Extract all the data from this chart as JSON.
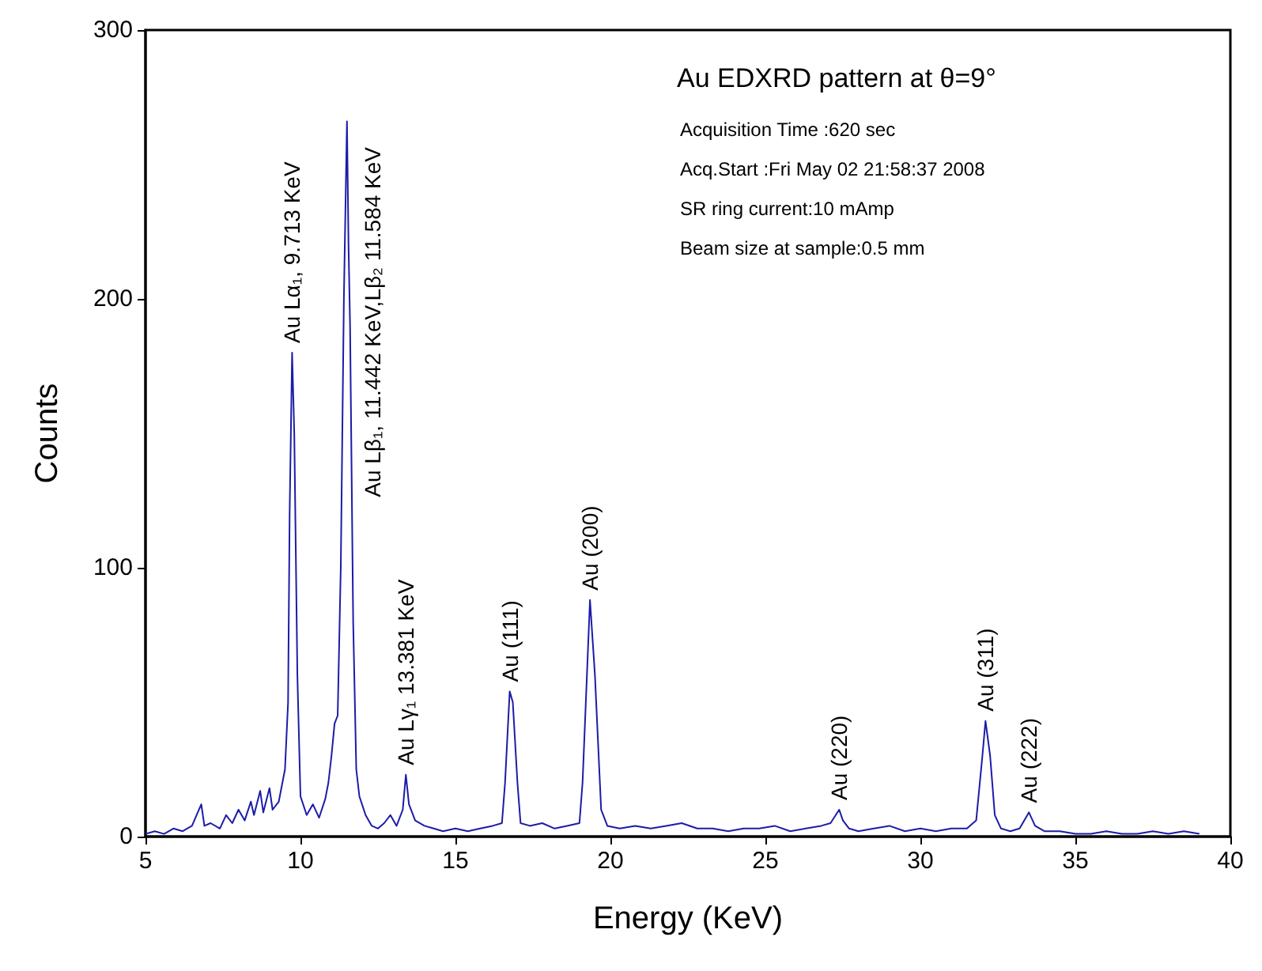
{
  "chart_data": {
    "type": "line",
    "title": "Au EDXRD pattern at θ=9°",
    "xlabel": "Energy (KeV)",
    "ylabel": "Counts",
    "xlim": [
      5,
      40
    ],
    "xticks": [
      5,
      10,
      15,
      20,
      25,
      30,
      35,
      40
    ],
    "ylim": [
      0,
      300
    ],
    "yticks": [
      0,
      100,
      200,
      300
    ],
    "grid": false,
    "series": [
      {
        "color": "#1c1ca8",
        "x": [
          5.0,
          5.3,
          5.6,
          5.9,
          6.2,
          6.5,
          6.8,
          6.9,
          7.1,
          7.4,
          7.6,
          7.8,
          8.0,
          8.2,
          8.4,
          8.5,
          8.7,
          8.8,
          9.0,
          9.1,
          9.3,
          9.5,
          9.6,
          9.65,
          9.73,
          9.8,
          9.9,
          10.0,
          10.2,
          10.4,
          10.6,
          10.8,
          10.9,
          11.0,
          11.1,
          11.2,
          11.3,
          11.4,
          11.5,
          11.55,
          11.6,
          11.7,
          11.8,
          11.9,
          12.1,
          12.3,
          12.5,
          12.7,
          12.9,
          13.1,
          13.3,
          13.4,
          13.5,
          13.7,
          14.0,
          14.3,
          14.6,
          15.0,
          15.4,
          15.8,
          16.2,
          16.5,
          16.6,
          16.75,
          16.85,
          17.0,
          17.1,
          17.4,
          17.8,
          18.2,
          18.6,
          19.0,
          19.1,
          19.34,
          19.5,
          19.7,
          19.9,
          20.3,
          20.8,
          21.3,
          21.8,
          22.3,
          22.8,
          23.3,
          23.8,
          24.3,
          24.8,
          25.3,
          25.8,
          26.3,
          26.8,
          27.1,
          27.38,
          27.5,
          27.7,
          28.0,
          28.5,
          29.0,
          29.5,
          30.0,
          30.5,
          31.0,
          31.5,
          31.8,
          32.0,
          32.1,
          32.25,
          32.4,
          32.6,
          32.9,
          33.2,
          33.5,
          33.7,
          34.0,
          34.5,
          35.0,
          35.5,
          36.0,
          36.5,
          37.0,
          37.5,
          38.0,
          38.5,
          39.0
        ],
        "values": [
          1,
          2,
          1,
          3,
          2,
          4,
          12,
          4,
          5,
          3,
          8,
          5,
          10,
          6,
          13,
          8,
          17,
          9,
          18,
          10,
          13,
          25,
          50,
          120,
          180,
          150,
          60,
          15,
          8,
          12,
          7,
          14,
          20,
          30,
          42,
          45,
          100,
          200,
          266,
          220,
          190,
          80,
          25,
          15,
          8,
          4,
          3,
          5,
          8,
          4,
          10,
          23,
          12,
          6,
          4,
          3,
          2,
          3,
          2,
          3,
          4,
          5,
          20,
          54,
          50,
          20,
          5,
          4,
          5,
          3,
          4,
          5,
          20,
          88,
          60,
          10,
          4,
          3,
          4,
          3,
          4,
          5,
          3,
          3,
          2,
          3,
          3,
          4,
          2,
          3,
          4,
          5,
          10,
          6,
          3,
          2,
          3,
          4,
          2,
          3,
          2,
          3,
          3,
          6,
          30,
          43,
          30,
          8,
          3,
          2,
          3,
          9,
          4,
          2,
          2,
          1,
          1,
          2,
          1,
          1,
          2,
          1,
          2,
          1
        ]
      }
    ],
    "annotations": [
      {
        "text": "Au Lα₁, 9.713 KeV",
        "x": 9.73,
        "y": 180
      },
      {
        "text": "Au Lβ₁, 11.442 KeV,Lβ₂ 11.584 KeV",
        "x": 11.5,
        "y": 266
      },
      {
        "text": "Au Lγ₁ 13.381 KeV",
        "x": 13.4,
        "y": 23
      },
      {
        "text": "Au (111)",
        "x": 16.75,
        "y": 54
      },
      {
        "text": "Au (200)",
        "x": 19.34,
        "y": 88
      },
      {
        "text": "Au (220)",
        "x": 27.38,
        "y": 10
      },
      {
        "text": "Au (311)",
        "x": 32.1,
        "y": 43
      },
      {
        "text": "Au (222)",
        "x": 33.5,
        "y": 9
      },
      "Acquisition Time :620 sec",
      "Acq.Start :Fri May 02 21:58:37 2008",
      "SR ring current:10 mAmp",
      "Beam size at sample:0.5 mm"
    ]
  }
}
